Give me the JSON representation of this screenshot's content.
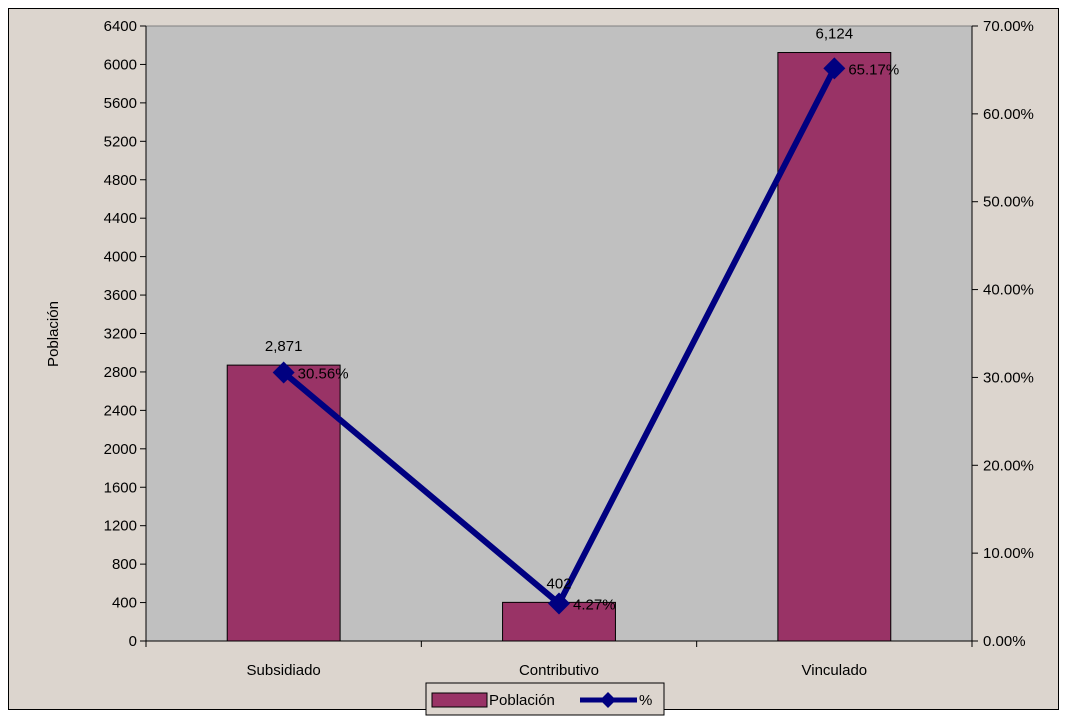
{
  "chart_data": {
    "type": "bar",
    "categories": [
      "Subsidiado",
      "Contributivo",
      "Vinculado"
    ],
    "series": [
      {
        "name": "Población",
        "type": "bar",
        "axis": "left",
        "values": [
          2871,
          402,
          6124
        ],
        "labels": [
          "2,871",
          "402",
          "6,124"
        ],
        "color": "#993366"
      },
      {
        "name": "%",
        "type": "line",
        "axis": "right",
        "values": [
          30.56,
          4.27,
          65.17
        ],
        "labels": [
          "30.56%",
          "4.27%",
          "65.17%"
        ],
        "color": "#000080"
      }
    ],
    "title": "",
    "xlabel": "",
    "ylabel": "Población",
    "ylim": [
      0,
      6400
    ],
    "yticks": [
      "0",
      "400",
      "800",
      "1200",
      "1600",
      "2000",
      "2400",
      "2800",
      "3200",
      "3600",
      "4000",
      "4400",
      "4800",
      "5200",
      "5600",
      "6000",
      "6400"
    ],
    "y2lim": [
      0,
      70
    ],
    "y2ticks": [
      "0.00%",
      "10.00%",
      "20.00%",
      "30.00%",
      "40.00%",
      "50.00%",
      "60.00%",
      "70.00%"
    ],
    "grid": false,
    "legend": "bottom-center",
    "colors": {
      "plot_background": "#c0c0c0",
      "chart_background": "#dcd5ce"
    }
  }
}
